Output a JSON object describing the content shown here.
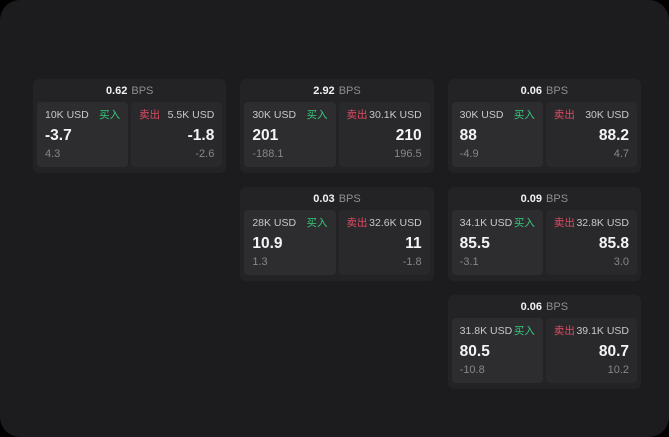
{
  "labels": {
    "bps_unit": "BPS",
    "buy": "买入",
    "sell": "卖出"
  },
  "colors": {
    "buy_accent": "#35c97d",
    "sell_accent": "#df4a62",
    "panel_bg": "#1c1c1e",
    "card_bg": "#232325",
    "buy_pane_bg": "#2d2d2f",
    "sell_pane_bg": "#29292b",
    "page_bg": "#000000"
  },
  "cards": [
    {
      "bps": "0.62",
      "buy": {
        "amount": "10K USD",
        "price": "-3.7",
        "change": "4.3"
      },
      "sell": {
        "amount": "5.5K USD",
        "price": "-1.8",
        "change": "-2.6"
      }
    },
    {
      "bps": "2.92",
      "buy": {
        "amount": "30K USD",
        "price": "201",
        "change": "-188.1"
      },
      "sell": {
        "amount": "30.1K USD",
        "price": "210",
        "change": "196.5"
      }
    },
    {
      "bps": "0.06",
      "buy": {
        "amount": "30K USD",
        "price": "88",
        "change": "-4.9"
      },
      "sell": {
        "amount": "30K USD",
        "price": "88.2",
        "change": "4.7"
      }
    },
    {
      "bps": "0.03",
      "buy": {
        "amount": "28K USD",
        "price": "10.9",
        "change": "1.3"
      },
      "sell": {
        "amount": "32.6K USD",
        "price": "11",
        "change": "-1.8"
      }
    },
    {
      "bps": "0.09",
      "buy": {
        "amount": "34.1K USD",
        "price": "85.5",
        "change": "-3.1"
      },
      "sell": {
        "amount": "32.8K USD",
        "price": "85.8",
        "change": "3.0"
      }
    },
    {
      "bps": "0.06",
      "buy": {
        "amount": "31.8K USD",
        "price": "80.5",
        "change": "-10.8"
      },
      "sell": {
        "amount": "39.1K USD",
        "price": "80.7",
        "change": "10.2"
      }
    }
  ]
}
